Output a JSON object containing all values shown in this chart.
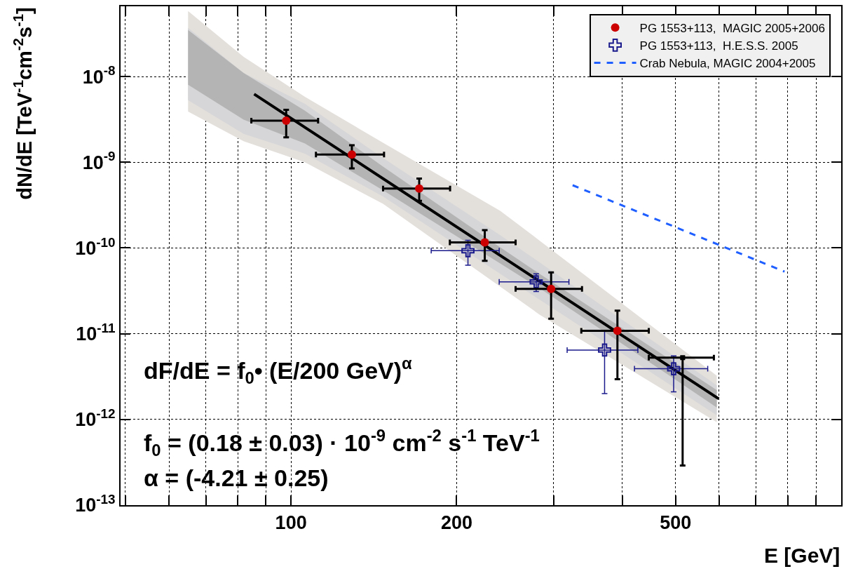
{
  "chart_data": {
    "type": "scatter",
    "xlabel": "E [GeV]",
    "ylabel": "dN/dE [TeV$^{-1}$cm$^{-2}$s$^{-1}$]",
    "log": "xy",
    "xlim": [
      49,
      1000
    ],
    "ylim": [
      1e-13,
      6.6e-08
    ],
    "xticks": [
      {
        "value": 50,
        "label": null
      },
      {
        "value": 60,
        "label": null
      },
      {
        "value": 70,
        "label": null
      },
      {
        "value": 80,
        "label": null
      },
      {
        "value": 90,
        "label": null
      },
      100,
      200,
      {
        "value": 300,
        "label": null
      },
      {
        "value": 400,
        "label": null
      },
      500,
      {
        "value": 600,
        "label": null
      },
      {
        "value": 700,
        "label": null
      },
      {
        "value": 800,
        "label": null
      },
      {
        "value": 900,
        "label": null
      },
      {
        "value": 1000,
        "label": null
      }
    ],
    "yticks": [
      {
        "value": 1e-13,
        "label": "10$^{-13}$"
      },
      {
        "value": 1e-12,
        "label": "10$^{-12}$"
      },
      {
        "value": 1e-11,
        "label": "10$^{-11}$"
      },
      {
        "value": 1e-10,
        "label": "10$^{-10}$"
      },
      {
        "value": 1e-09,
        "label": "10$^{-9}$"
      },
      {
        "value": 1e-08,
        "label": "10$^{-8}$"
      }
    ],
    "grid": true,
    "legend": "top right",
    "series": [
      {
        "type": "area",
        "color": "#e3dfdb",
        "x": [
          65,
          82,
          106,
          147,
          240,
          283,
          594
        ],
        "values": [
          null,
          null,
          null,
          null,
          null,
          null,
          null
        ],
        "upper": [
          5.8e-08,
          1.7e-08,
          5.8e-09,
          1.69e-09,
          2.71e-10,
          1.22e-10,
          3.24e-12
        ],
        "lower": [
          3.9e-09,
          1.76e-09,
          1e-09,
          3.27e-10,
          3.55e-11,
          1.67e-11,
          9.3e-13
        ]
      },
      {
        "type": "area",
        "color": "#d6d6d8",
        "x": [
          65,
          82,
          106,
          147,
          240,
          283,
          594
        ],
        "values": [
          null,
          null,
          null,
          null,
          null,
          null,
          null
        ],
        "upper": [
          3.7e-08,
          1.1e-08,
          4.8e-09,
          1.12e-09,
          1.41e-10,
          6.8e-11,
          2.5e-12
        ],
        "lower": [
          5.3e-09,
          2.15e-09,
          1.26e-09,
          4e-10,
          5e-11,
          2.5e-11,
          1.12e-12
        ]
      },
      {
        "type": "area",
        "color": "#b4b4b4",
        "x": [
          65,
          82,
          106,
          147,
          240,
          283,
          594
        ],
        "values": [
          null,
          null,
          null,
          null,
          null,
          null,
          null
        ],
        "upper": [
          3.5e-08,
          1.1e-08,
          4e-09,
          8.9e-10,
          1.02e-10,
          5e-11,
          2.2e-12
        ],
        "lower": [
          8.05e-09,
          3.15e-09,
          1.66e-09,
          4.7e-10,
          6.6e-11,
          3.4e-11,
          1.38e-12
        ]
      },
      {
        "type": "line",
        "color": "#000000",
        "line_style": "solid",
        "x": [
          85.7,
          599
        ],
        "values": [
          6.25e-09,
          1.74e-12
        ]
      },
      {
        "type": "line",
        "name": "Crab Nebula, MAGIC 2004+2005",
        "color": "#1f5fff",
        "line_style": "dashed",
        "x": [
          325,
          789
        ],
        "values": [
          5.4e-10,
          5.3e-11
        ]
      },
      {
        "name": "PG 1553+113,  H.E.S.S. 2005",
        "color": "#1a1a8c",
        "marker": "cross",
        "x": [
          209.7,
          279,
          371.5,
          496
        ],
        "values": [
          9.3e-11,
          4.03e-11,
          6.45e-12,
          3.9e-12
        ],
        "errors": [
          [
            6.3e-11,
            1.23e-10
          ],
          [
            3.1e-11,
            5e-11
          ],
          [
            2e-12,
            1.08e-11
          ],
          [
            2.1e-12,
            5.5e-12
          ]
        ],
        "xerrors": [
          [
            179.8,
            239
          ],
          [
            239,
            320
          ],
          [
            317.6,
            427
          ],
          [
            421,
            572
          ]
        ]
      },
      {
        "name": "PG 1553+113,  MAGIC 2005+2006",
        "color": "#cc0000",
        "marker": "circle",
        "x": [
          98,
          129,
          171,
          225,
          297,
          392
        ],
        "values": [
          3.06e-09,
          1.23e-09,
          4.94e-10,
          1.16e-10,
          3.34e-11,
          1.08e-11
        ],
        "errors": [
          [
            1.95e-09,
            4.1e-09
          ],
          [
            8.5e-10,
            1.58e-09
          ],
          [
            3.55e-10,
            6.45e-10
          ],
          [
            7.1e-11,
            1.62e-10
          ],
          [
            1.5e-11,
            5.2e-11
          ],
          [
            2.95e-12,
            1.86e-11
          ]
        ],
        "xerrors": [
          [
            84.7,
            112
          ],
          [
            111,
            147.6
          ],
          [
            147,
            194.6
          ],
          [
            194.4,
            256
          ],
          [
            256,
            338
          ],
          [
            337,
            447
          ]
        ]
      },
      {
        "color": "#000000",
        "marker": "square",
        "x": [
          515
        ],
        "values": [
          5.27e-12
        ],
        "errors": [
          [
            2.9e-13,
            5.27e-12
          ]
        ],
        "xerrors": [
          [
            447,
            587
          ]
        ]
      }
    ],
    "annotations": [
      "dF/dE = f$_{0}$• (E/200 GeV)$^{α}$",
      "f$_{0}$ = (0.18 ± 0.03) · 10$^{-9}$ cm$^{-2}$ s$^{-1}$ TeV$^{-1}$",
      "α = (-4.21 ± 0.25)"
    ]
  }
}
